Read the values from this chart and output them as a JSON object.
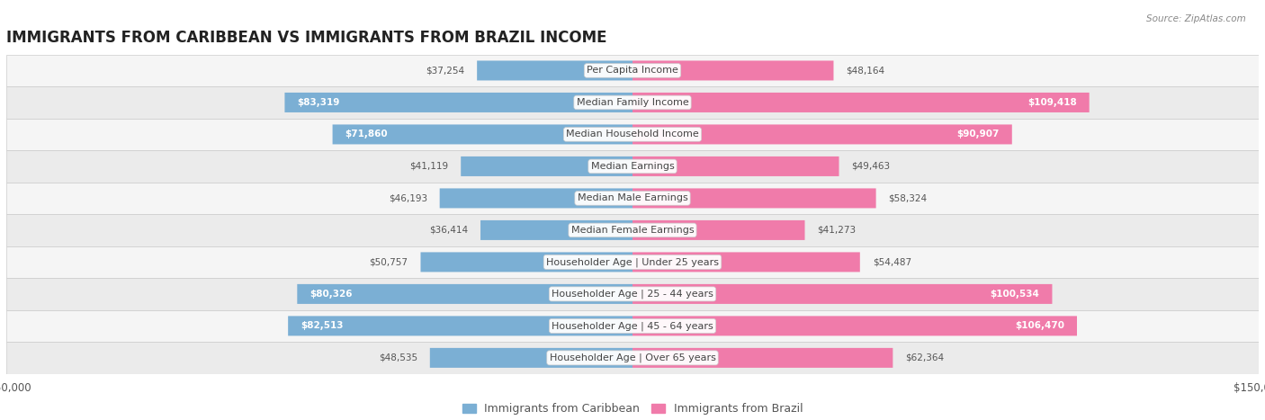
{
  "title": "IMMIGRANTS FROM CARIBBEAN VS IMMIGRANTS FROM BRAZIL INCOME",
  "source": "Source: ZipAtlas.com",
  "categories": [
    "Per Capita Income",
    "Median Family Income",
    "Median Household Income",
    "Median Earnings",
    "Median Male Earnings",
    "Median Female Earnings",
    "Householder Age | Under 25 years",
    "Householder Age | 25 - 44 years",
    "Householder Age | 45 - 64 years",
    "Householder Age | Over 65 years"
  ],
  "caribbean_values": [
    37254,
    83319,
    71860,
    41119,
    46193,
    36414,
    50757,
    80326,
    82513,
    48535
  ],
  "brazil_values": [
    48164,
    109418,
    90907,
    49463,
    58324,
    41273,
    54487,
    100534,
    106470,
    62364
  ],
  "caribbean_color": "#7bafd4",
  "brazil_color": "#f07baa",
  "caribbean_label": "Immigrants from Caribbean",
  "brazil_label": "Immigrants from Brazil",
  "max_value": 150000,
  "row_bg_light": "#f0f0f0",
  "row_bg_dark": "#e0e0e0",
  "bar_height": 0.62,
  "title_fontsize": 12,
  "label_fontsize": 8,
  "value_fontsize": 7.5,
  "legend_fontsize": 9,
  "caribbean_threshold": 65000,
  "brazil_threshold": 82000
}
